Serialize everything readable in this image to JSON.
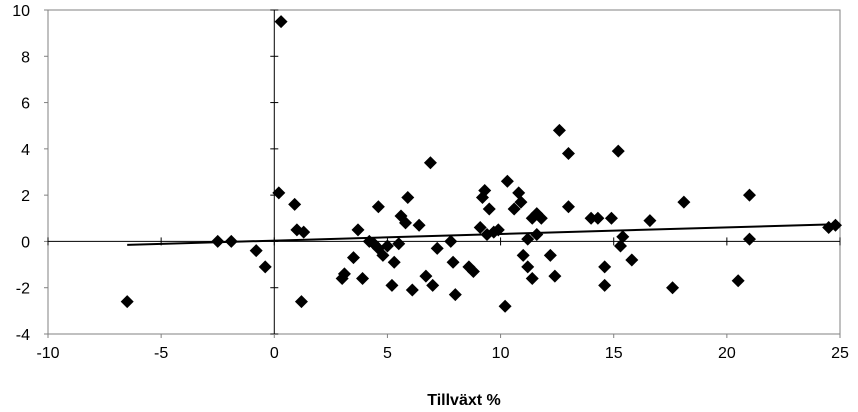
{
  "chart_data": {
    "type": "scatter",
    "title": "",
    "xlabel": "Tillväxt %",
    "ylabel": "",
    "xlim": [
      -10,
      25
    ],
    "ylim": [
      -4,
      10
    ],
    "x_ticks": [
      -10,
      -5,
      0,
      5,
      10,
      15,
      20,
      25
    ],
    "y_ticks": [
      -4,
      -2,
      0,
      2,
      4,
      6,
      8,
      10
    ],
    "x_tick_labels": [
      "-10",
      "-5",
      "0",
      "5",
      "10",
      "15",
      "20",
      "25"
    ],
    "y_tick_labels": [
      "-4",
      "-2",
      "0",
      "2",
      "4",
      "6",
      "8",
      "10"
    ],
    "grid": false,
    "marker": "diamond",
    "point_color": "#000000",
    "points": [
      {
        "x": -6.5,
        "y": -2.6
      },
      {
        "x": -2.5,
        "y": 0.0
      },
      {
        "x": -1.9,
        "y": 0.0
      },
      {
        "x": -0.8,
        "y": -0.4
      },
      {
        "x": -0.4,
        "y": -1.1
      },
      {
        "x": 0.2,
        "y": 2.1
      },
      {
        "x": 0.3,
        "y": 9.5
      },
      {
        "x": 0.9,
        "y": 1.6
      },
      {
        "x": 1.0,
        "y": 0.5
      },
      {
        "x": 1.2,
        "y": -2.6
      },
      {
        "x": 1.3,
        "y": 0.4
      },
      {
        "x": 3.0,
        "y": -1.6
      },
      {
        "x": 3.1,
        "y": -1.4
      },
      {
        "x": 3.5,
        "y": -0.7
      },
      {
        "x": 3.7,
        "y": 0.5
      },
      {
        "x": 3.9,
        "y": -1.6
      },
      {
        "x": 4.2,
        "y": 0.0
      },
      {
        "x": 4.4,
        "y": -0.1
      },
      {
        "x": 4.6,
        "y": -0.3
      },
      {
        "x": 4.6,
        "y": 1.5
      },
      {
        "x": 4.8,
        "y": -0.6
      },
      {
        "x": 5.0,
        "y": -0.2
      },
      {
        "x": 5.2,
        "y": -1.9
      },
      {
        "x": 5.3,
        "y": -0.9
      },
      {
        "x": 5.5,
        "y": -0.1
      },
      {
        "x": 5.6,
        "y": 1.1
      },
      {
        "x": 5.8,
        "y": 0.8
      },
      {
        "x": 5.9,
        "y": 1.9
      },
      {
        "x": 6.1,
        "y": -2.1
      },
      {
        "x": 6.4,
        "y": 0.7
      },
      {
        "x": 6.7,
        "y": -1.5
      },
      {
        "x": 6.9,
        "y": 3.4
      },
      {
        "x": 7.0,
        "y": -1.9
      },
      {
        "x": 7.2,
        "y": -0.3
      },
      {
        "x": 7.8,
        "y": 0.0
      },
      {
        "x": 7.9,
        "y": -0.9
      },
      {
        "x": 8.0,
        "y": -2.3
      },
      {
        "x": 8.6,
        "y": -1.1
      },
      {
        "x": 8.8,
        "y": -1.3
      },
      {
        "x": 9.1,
        "y": 0.6
      },
      {
        "x": 9.2,
        "y": 1.9
      },
      {
        "x": 9.3,
        "y": 2.2
      },
      {
        "x": 9.4,
        "y": 0.3
      },
      {
        "x": 9.5,
        "y": 1.4
      },
      {
        "x": 9.7,
        "y": 0.4
      },
      {
        "x": 9.9,
        "y": 0.5
      },
      {
        "x": 10.2,
        "y": -2.8
      },
      {
        "x": 10.3,
        "y": 2.6
      },
      {
        "x": 10.6,
        "y": 1.4
      },
      {
        "x": 10.8,
        "y": 2.1
      },
      {
        "x": 10.9,
        "y": 1.7
      },
      {
        "x": 11.0,
        "y": -0.6
      },
      {
        "x": 11.2,
        "y": 0.1
      },
      {
        "x": 11.2,
        "y": -1.1
      },
      {
        "x": 11.4,
        "y": -1.6
      },
      {
        "x": 11.4,
        "y": 1.0
      },
      {
        "x": 11.6,
        "y": 1.2
      },
      {
        "x": 11.6,
        "y": 0.3
      },
      {
        "x": 11.8,
        "y": 1.0
      },
      {
        "x": 12.2,
        "y": -0.6
      },
      {
        "x": 12.4,
        "y": -1.5
      },
      {
        "x": 12.6,
        "y": 4.8
      },
      {
        "x": 13.0,
        "y": 3.8
      },
      {
        "x": 13.0,
        "y": 1.5
      },
      {
        "x": 14.0,
        "y": 1.0
      },
      {
        "x": 14.3,
        "y": 1.0
      },
      {
        "x": 14.6,
        "y": -1.1
      },
      {
        "x": 14.6,
        "y": -1.9
      },
      {
        "x": 14.9,
        "y": 1.0
      },
      {
        "x": 15.2,
        "y": 3.9
      },
      {
        "x": 15.3,
        "y": -0.2
      },
      {
        "x": 15.4,
        "y": 0.2
      },
      {
        "x": 15.8,
        "y": -0.8
      },
      {
        "x": 16.6,
        "y": 0.9
      },
      {
        "x": 17.6,
        "y": -2.0
      },
      {
        "x": 18.1,
        "y": 1.7
      },
      {
        "x": 20.5,
        "y": -1.7
      },
      {
        "x": 21.0,
        "y": 0.1
      },
      {
        "x": 21.0,
        "y": 2.0
      },
      {
        "x": 24.5,
        "y": 0.6
      },
      {
        "x": 24.8,
        "y": 0.7
      }
    ],
    "trendline": {
      "x1": -6.5,
      "y1": -0.15,
      "x2": 25.0,
      "y2": 0.75,
      "color": "#000000"
    }
  }
}
